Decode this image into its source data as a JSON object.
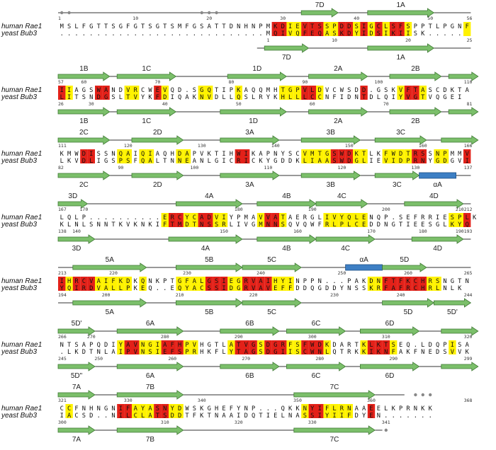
{
  "species": {
    "top": "human Rae1",
    "bottom": "yeast Bub3"
  },
  "colors": {
    "identical": "#e32119",
    "similar": "#fff200",
    "arrow_fill": "#7bbf6a",
    "arrow_stroke": "#3f7a34",
    "helix_fill": "#3d7fc4",
    "helix_stroke": "#1d4f86",
    "line": "#333333"
  },
  "blocks": [
    {
      "human": {
        "seq": "MSLFGTTSGFGTSGTSMFGSATTDNHNPMKDIEVTSSPDDSIGCLSFSPPTLPGNF",
        "start": "1",
        "end": "56",
        "ticks": [
          {
            "label": "10",
            "col": 10
          },
          {
            "label": "20",
            "col": 20
          },
          {
            "label": "30",
            "col": 30
          },
          {
            "label": "40",
            "col": 40
          },
          {
            "label": "50",
            "col": 50
          }
        ]
      },
      "yeast": {
        "seq": "............................MQIVQFEQASKDYIDSIKIISK.....",
        "start": "",
        "end": "25",
        "ticks": [
          {
            "label": "1",
            "col": 28
          },
          {
            "label": "10",
            "col": 37
          },
          {
            "label": "20",
            "col": 47
          }
        ]
      },
      "top_ss": [
        {
          "type": "arrow",
          "label": "7D",
          "c1": 33,
          "c2": 37
        },
        {
          "type": "arrow",
          "label": "1A",
          "c1": 42,
          "c2": 50
        }
      ],
      "bottom_ss": [
        {
          "type": "arrow",
          "label": "7D",
          "c1": 28,
          "c2": 33
        },
        {
          "type": "arrow",
          "label": "1A",
          "c1": 42,
          "c2": 50
        }
      ],
      "top_line": [
        0,
        56
      ],
      "bottom_line": [
        27,
        56
      ],
      "dots_top": [
        0,
        1,
        19,
        20,
        21
      ],
      "red": [
        29,
        30,
        33,
        34,
        35,
        38,
        39,
        41,
        43,
        45,
        46
      ],
      "yellow": [
        31,
        32,
        36,
        37,
        40,
        42,
        44,
        47,
        55
      ]
    },
    {
      "human": {
        "seq": "IIAGSWANDVRCWEVQD.SGQTIPKAQQMHTGPVLDVCWSDD.GSKVFTASCDKTA",
        "start": "57",
        "end": "110",
        "ticks": [
          {
            "label": "60",
            "col": 3
          },
          {
            "label": "70",
            "col": 13
          },
          {
            "label": "80",
            "col": 23
          },
          {
            "label": "90",
            "col": 33
          },
          {
            "label": "100",
            "col": 43
          }
        ]
      },
      "yeast": {
        "seq": "LITSNDGSLTVYKFDIQAKNVDLLQSLRYKHLLLCCNFIDNTDLQIYVGTVQGEI",
        "start": "26",
        "end": "81",
        "ticks": [
          {
            "label": "30",
            "col": 4
          },
          {
            "label": "40",
            "col": 14
          },
          {
            "label": "50",
            "col": 24
          },
          {
            "label": "60",
            "col": 34
          },
          {
            "label": "70",
            "col": 44
          }
        ]
      },
      "top_ss": [
        {
          "type": "arrow",
          "label": "1B",
          "c1": 0,
          "c2": 6
        },
        {
          "type": "arrow",
          "label": "1C",
          "c1": 8,
          "c2": 15
        },
        {
          "type": "arrow",
          "label": "1D",
          "c1": 23,
          "c2": 30
        },
        {
          "type": "arrow",
          "label": "2A",
          "c1": 34,
          "c2": 41
        },
        {
          "type": "arrow",
          "label": "2B",
          "c1": 45,
          "c2": 51
        },
        {
          "type": "arrow",
          "label": "",
          "c1": 53,
          "c2": 56
        }
      ],
      "bottom_ss": [
        {
          "type": "arrow",
          "label": "1B",
          "c1": 0,
          "c2": 6
        },
        {
          "type": "arrow",
          "label": "1C",
          "c1": 8,
          "c2": 15
        },
        {
          "type": "arrow",
          "label": "1D",
          "c1": 22,
          "c2": 30
        },
        {
          "type": "arrow",
          "label": "2A",
          "c1": 34,
          "c2": 41
        },
        {
          "type": "arrow",
          "label": "2B",
          "c1": 45,
          "c2": 51
        },
        {
          "type": "arrow",
          "label": "",
          "c1": 53,
          "c2": 56
        }
      ],
      "top_line": [
        0,
        56
      ],
      "bottom_line": [
        0,
        56
      ],
      "dots_top": [],
      "red": [
        0,
        5,
        6,
        13,
        33,
        34,
        41,
        47,
        48
      ],
      "yellow": [
        1,
        9,
        10,
        14,
        19,
        20,
        24,
        30,
        31,
        32,
        35,
        46,
        49
      ]
    },
    {
      "human": {
        "seq": "KMWDISSNQAIQIAQHDAPVKTIHWIKAPNYSCVMTGSWDKTLKFWDTRSSNPMMV",
        "start": "111",
        "end": "166",
        "ticks": [
          {
            "label": "120",
            "col": 9
          },
          {
            "label": "130",
            "col": 19
          },
          {
            "label": "140",
            "col": 29
          },
          {
            "label": "150",
            "col": 39
          },
          {
            "label": "160",
            "col": 49
          }
        ]
      },
      "yeast": {
        "seq": "LKVDLIGSPSFQALTNNEANLGICRICKYGDDKLIAASWDGLIEVIDPRNYGDGVI",
        "start": "82",
        "end": "137",
        "ticks": [
          {
            "label": "90",
            "col": 8
          },
          {
            "label": "100",
            "col": 18
          },
          {
            "label": "110",
            "col": 28
          },
          {
            "label": "120",
            "col": 38
          },
          {
            "label": "130",
            "col": 48
          }
        ]
      },
      "top_ss": [
        {
          "type": "arrow",
          "label": "2C",
          "c1": 0,
          "c2": 6
        },
        {
          "type": "arrow",
          "label": "2D",
          "c1": 10,
          "c2": 16
        },
        {
          "type": "arrow",
          "label": "3A",
          "c1": 22,
          "c2": 29
        },
        {
          "type": "arrow",
          "label": "3B",
          "c1": 33,
          "c2": 40
        },
        {
          "type": "arrow",
          "label": "3C",
          "c1": 43,
          "c2": 49
        },
        {
          "type": "arrow",
          "label": "",
          "c1": 52,
          "c2": 56
        }
      ],
      "bottom_ss": [
        {
          "type": "arrow",
          "label": "2C",
          "c1": 0,
          "c2": 6
        },
        {
          "type": "arrow",
          "label": "2D",
          "c1": 10,
          "c2": 16
        },
        {
          "type": "arrow",
          "label": "3A",
          "c1": 22,
          "c2": 29
        },
        {
          "type": "arrow",
          "label": "3B",
          "c1": 33,
          "c2": 40
        },
        {
          "type": "arrow",
          "label": "3C",
          "c1": 43,
          "c2": 48
        },
        {
          "type": "helix",
          "label": "αA",
          "c1": 49,
          "c2": 53
        }
      ],
      "top_line": [
        0,
        56
      ],
      "bottom_line": [
        0,
        56
      ],
      "dots_top": [],
      "red": [
        3,
        4,
        24,
        25,
        37,
        38,
        39,
        48,
        49,
        55
      ],
      "yellow": [
        8,
        9,
        11,
        12,
        16,
        17,
        33,
        34,
        35,
        36,
        40,
        41,
        44,
        45,
        46,
        47,
        51,
        52
      ]
    },
    {
      "human": {
        "seq": "LQLP..........ERCYCADVIYPMAVVATAERGLIVYQLENQP.SEFRRIESPLK",
        "start": "167",
        "end": "212",
        "ticks": [
          {
            "label": "170",
            "col": 3
          },
          {
            "label": "180",
            "col": 24
          },
          {
            "label": "190",
            "col": 34
          },
          {
            "label": "200",
            "col": 44
          },
          {
            "label": "210",
            "col": 54
          }
        ]
      },
      "yeast": {
        "seq": "KLNLSNNTKVKNKIFTMDTNSSRLIVGMNNSQVQWFRLPLCEDDNGTIEESGLKYQ",
        "start": "138",
        "end": "193",
        "ticks": [
          {
            "label": "140",
            "col": 2
          },
          {
            "label": "150",
            "col": 22
          },
          {
            "label": "160",
            "col": 32
          },
          {
            "label": "170",
            "col": 42
          },
          {
            "label": "180",
            "col": 49
          },
          {
            "label": "190",
            "col": 54
          }
        ]
      },
      "top_ss": [
        {
          "type": "arrow",
          "label": "3D",
          "c1": 0,
          "c2": 3
        },
        {
          "type": "arrow",
          "label": "4A",
          "c1": 16,
          "c2": 24
        },
        {
          "type": "arrow",
          "label": "4B",
          "c1": 27,
          "c2": 34
        },
        {
          "type": "arrow",
          "label": "4C",
          "c1": 35,
          "c2": 41
        },
        {
          "type": "arrow",
          "label": "4D",
          "c1": 47,
          "c2": 54
        }
      ],
      "bottom_ss": [
        {
          "type": "arrow",
          "label": "3D",
          "c1": 0,
          "c2": 4
        },
        {
          "type": "arrow",
          "label": "4A",
          "c1": 15,
          "c2": 24
        },
        {
          "type": "arrow",
          "label": "4B",
          "c1": 27,
          "c2": 34
        },
        {
          "type": "arrow",
          "label": "4C",
          "c1": 35,
          "c2": 42
        },
        {
          "type": "arrow",
          "label": "4D",
          "c1": 48,
          "c2": 54
        }
      ],
      "top_line": [
        0,
        56
      ],
      "bottom_line": [
        0,
        56
      ],
      "dots_top": [],
      "red": [
        15,
        16,
        19,
        20,
        28,
        29,
        55
      ],
      "yellow": [
        14,
        17,
        18,
        21,
        22,
        27,
        30,
        36,
        37,
        38,
        39,
        40,
        41,
        53,
        54
      ]
    },
    {
      "human": {
        "seq": "IHRCVAIFKDKQNKPTGFALGSIEGRVAIHYINPPN...PAKDNFTFKCHRSNGTN",
        "start": "213",
        "end": "265",
        "ticks": [
          {
            "label": "220",
            "col": 7
          },
          {
            "label": "230",
            "col": 17
          },
          {
            "label": "240",
            "col": 27
          },
          {
            "label": "250",
            "col": 38
          },
          {
            "label": "260",
            "col": 47
          }
        ]
      },
      "yeast": {
        "seq": "YQIRDVALLPKEQ..EQYACSSIDGRVAVEFFDDQGDDYNSSKRFAFRCHRLNLK",
        "start": "194",
        "end": "244",
        "ticks": [
          {
            "label": "200",
            "col": 6
          },
          {
            "label": "210",
            "col": 16
          },
          {
            "label": "220",
            "col": 26
          },
          {
            "label": "230",
            "col": 37
          },
          {
            "label": "240",
            "col": 46
          }
        ]
      },
      "top_ss": [
        {
          "type": "arrow",
          "label": "5A",
          "c1": 2,
          "c2": 11
        },
        {
          "type": "arrow",
          "label": "5B",
          "c1": 16,
          "c2": 24
        },
        {
          "type": "arrow",
          "label": "5C",
          "c1": 25,
          "c2": 32
        },
        {
          "type": "helix",
          "label": "αA",
          "c1": 39,
          "c2": 43
        },
        {
          "type": "arrow",
          "label": "5D",
          "c1": 44,
          "c2": 49
        }
      ],
      "bottom_ss": [
        {
          "type": "arrow",
          "label": "5A",
          "c1": 2,
          "c2": 11
        },
        {
          "type": "arrow",
          "label": "5B",
          "c1": 16,
          "c2": 24
        },
        {
          "type": "arrow",
          "label": "5C",
          "c1": 25,
          "c2": 32
        },
        {
          "type": "arrow",
          "label": "5D",
          "c1": 44,
          "c2": 50
        },
        {
          "type": "arrow",
          "label": "5D'",
          "c1": 51,
          "c2": 55
        }
      ],
      "top_line": [
        0,
        56
      ],
      "bottom_line": [
        0,
        56
      ],
      "dots_top": [],
      "red": [
        0,
        2,
        3,
        4,
        20,
        21,
        22,
        25,
        26,
        27,
        28,
        44,
        45,
        46,
        47,
        48,
        49
      ],
      "yellow": [
        1,
        5,
        6,
        7,
        8,
        9,
        11,
        16,
        17,
        18,
        19,
        23,
        24,
        29,
        30,
        31,
        42,
        43,
        50,
        51
      ]
    },
    {
      "human": {
        "seq": "NTSAPQDIYAVNGIAFHPVHGTLATVGSDGRFSFWDKDARTKLKTSEQ.LDQPISA",
        "start": "266",
        "end": "320",
        "ticks": [
          {
            "label": "270",
            "col": 4
          },
          {
            "label": "280",
            "col": 14
          },
          {
            "label": "290",
            "col": 24
          },
          {
            "label": "300",
            "col": 34
          },
          {
            "label": "310",
            "col": 44
          }
        ]
      },
      "yeast": {
        "seq": ".LKDTNLAIPVNSIEFSPRHKFLYTAGSDGIISCWNLQTRKKIKNFAKFNEDSVVK",
        "start": "245",
        "end": "299",
        "ticks": [
          {
            "label": "250",
            "col": 5
          },
          {
            "label": "260",
            "col": 15
          },
          {
            "label": "270",
            "col": 25
          },
          {
            "label": "280",
            "col": 35
          },
          {
            "label": "290",
            "col": 45
          }
        ]
      },
      "top_ss": [
        {
          "type": "arrow",
          "label": "5D'",
          "c1": 0,
          "c2": 4
        },
        {
          "type": "arrow",
          "label": "6A",
          "c1": 8,
          "c2": 16
        },
        {
          "type": "arrow",
          "label": "6B",
          "c1": 22,
          "c2": 29
        },
        {
          "type": "arrow",
          "label": "6C",
          "c1": 31,
          "c2": 38
        },
        {
          "type": "arrow",
          "label": "6D",
          "c1": 41,
          "c2": 48
        },
        {
          "type": "arrow",
          "label": "",
          "c1": 52,
          "c2": 56
        }
      ],
      "bottom_ss": [
        {
          "type": "arrow",
          "label": "5D\"",
          "c1": 0,
          "c2": 4
        },
        {
          "type": "arrow",
          "label": "6A",
          "c1": 8,
          "c2": 16
        },
        {
          "type": "arrow",
          "label": "6B",
          "c1": 22,
          "c2": 29
        },
        {
          "type": "arrow",
          "label": "6C",
          "c1": 31,
          "c2": 38
        },
        {
          "type": "arrow",
          "label": "6D",
          "c1": 41,
          "c2": 48
        },
        {
          "type": "arrow",
          "label": "",
          "c1": 52,
          "c2": 56
        }
      ],
      "top_line": [
        0,
        56
      ],
      "bottom_line": [
        0,
        56
      ],
      "dots_top": [],
      "red": [
        9,
        10,
        14,
        15,
        16,
        24,
        25,
        26,
        28,
        29,
        30,
        33,
        34,
        35,
        42,
        43,
        44
      ],
      "yellow": [
        8,
        11,
        12,
        13,
        17,
        18,
        23,
        27,
        31,
        32,
        36,
        41,
        45,
        53
      ]
    },
    {
      "human": {
        "seq": "CCFNHNGNIFAYASNYDWSKGHEFYNP...QKKNYIFLRNAAEELKPRNKK",
        "start": "321",
        "end": "368",
        "ticks": [
          {
            "label": "330",
            "col": 9
          },
          {
            "label": "340",
            "col": 19
          },
          {
            "label": "350",
            "col": 32
          },
          {
            "label": "360",
            "col": 42
          }
        ]
      },
      "yeast": {
        "seq": "IACSD..NILCLATSDDTFKTNAAIDQTIELNASSIYIIFDYEN.......",
        "start": "300",
        "end": "",
        "ticks": [
          {
            "label": "310",
            "col": 14
          },
          {
            "label": "320",
            "col": 24
          },
          {
            "label": "330",
            "col": 34
          },
          {
            "label": "341",
            "col": 44
          }
        ]
      },
      "top_ss": [
        {
          "type": "arrow",
          "label": "7A",
          "c1": 0,
          "c2": 4
        },
        {
          "type": "arrow",
          "label": "7B",
          "c1": 8,
          "c2": 16
        },
        {
          "type": "arrow",
          "label": "7C",
          "c1": 32,
          "c2": 42
        }
      ],
      "bottom_ss": [
        {
          "type": "arrow",
          "label": "7A",
          "c1": 0,
          "c2": 4
        },
        {
          "type": "arrow",
          "label": "7B",
          "c1": 8,
          "c2": 16
        },
        {
          "type": "arrow",
          "label": "7C",
          "c1": 32,
          "c2": 42
        }
      ],
      "top_line": [
        0,
        47
      ],
      "bottom_line": [
        0,
        44
      ],
      "dots_top": [
        48,
        49,
        50
      ],
      "dots_bottom": [
        44
      ],
      "red": [
        8,
        9,
        13,
        14,
        34,
        35,
        42
      ],
      "yellow": [
        1,
        10,
        11,
        12,
        15,
        16,
        33,
        36,
        37,
        38,
        39
      ]
    }
  ]
}
